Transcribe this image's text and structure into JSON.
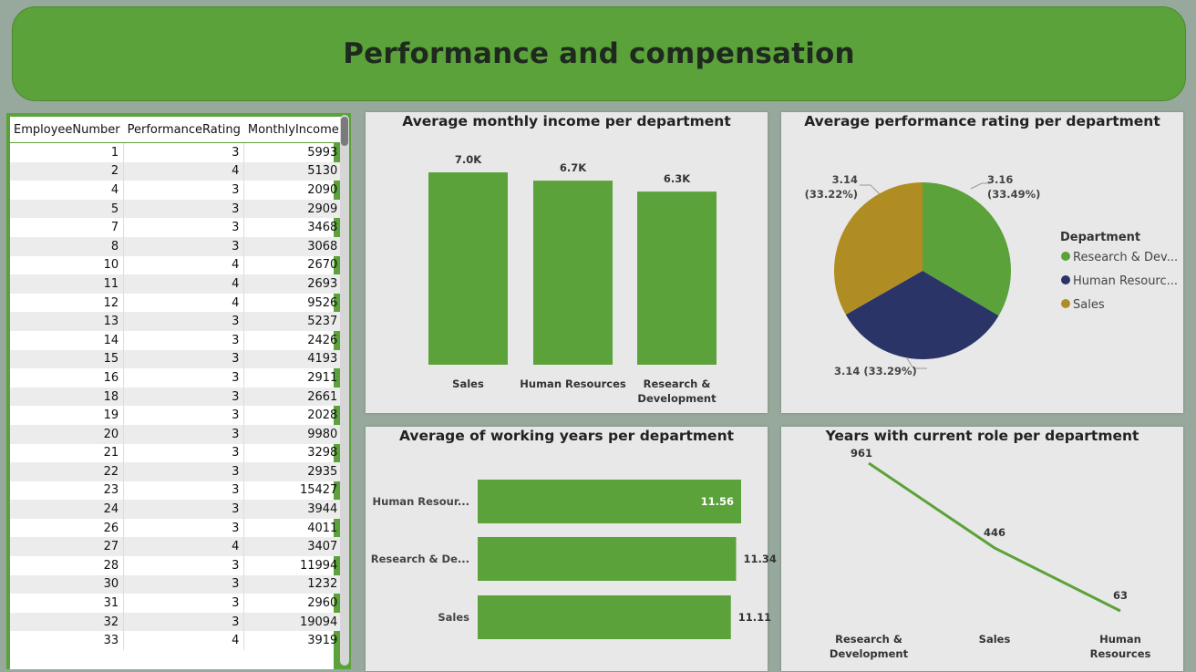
{
  "header": {
    "title": "Performance and compensation"
  },
  "table": {
    "columns": [
      "EmployeeNumber",
      "PerformanceRating",
      "MonthlyIncome"
    ],
    "rows": [
      [
        1,
        3,
        5993
      ],
      [
        2,
        4,
        5130
      ],
      [
        4,
        3,
        2090
      ],
      [
        5,
        3,
        2909
      ],
      [
        7,
        3,
        3468
      ],
      [
        8,
        3,
        3068
      ],
      [
        10,
        4,
        2670
      ],
      [
        11,
        4,
        2693
      ],
      [
        12,
        4,
        9526
      ],
      [
        13,
        3,
        5237
      ],
      [
        14,
        3,
        2426
      ],
      [
        15,
        3,
        4193
      ],
      [
        16,
        3,
        2911
      ],
      [
        18,
        3,
        2661
      ],
      [
        19,
        3,
        2028
      ],
      [
        20,
        3,
        9980
      ],
      [
        21,
        3,
        3298
      ],
      [
        22,
        3,
        2935
      ],
      [
        23,
        3,
        15427
      ],
      [
        24,
        3,
        3944
      ],
      [
        26,
        3,
        4011
      ],
      [
        27,
        4,
        3407
      ],
      [
        28,
        3,
        11994
      ],
      [
        30,
        3,
        1232
      ],
      [
        31,
        3,
        2960
      ],
      [
        32,
        3,
        19094
      ],
      [
        33,
        4,
        3919
      ]
    ]
  },
  "chart_data": [
    {
      "type": "bar",
      "title": "Average monthly income per department",
      "categories": [
        "Sales",
        "Human Resources",
        "Research & Development"
      ],
      "values": [
        7000,
        6700,
        6300
      ],
      "data_labels": [
        "7.0K",
        "6.7K",
        "6.3K"
      ],
      "ylim": [
        0,
        7300
      ],
      "color": "#5ba23a"
    },
    {
      "type": "pie",
      "title": "Average performance rating per department",
      "legend_title": "Department",
      "legend_labels": [
        "Research & Dev...",
        "Human Resourc...",
        "Sales"
      ],
      "categories": [
        "Research & Development",
        "Human Resources",
        "Sales"
      ],
      "values": [
        3.16,
        3.14,
        3.14
      ],
      "data_labels": [
        "3.16\n(33.49%)",
        "3.14 (33.29%)",
        "3.14\n(33.22%)"
      ],
      "colors": [
        "#5ba23a",
        "#2b3467",
        "#b08d22"
      ],
      "legend_position": "right"
    },
    {
      "type": "bar",
      "orientation": "horizontal",
      "title": "Average of working years per department",
      "categories": [
        "Human Resour...",
        "Research & De...",
        "Sales"
      ],
      "values": [
        11.56,
        11.34,
        11.11
      ],
      "data_labels": [
        "11.56",
        "11.34",
        "11.11"
      ],
      "xlim": [
        0,
        12
      ],
      "color": "#5ba23a"
    },
    {
      "type": "line",
      "title": "Years with current role per department",
      "categories": [
        "Research & Development",
        "Sales",
        "Human Resources"
      ],
      "values": [
        961,
        446,
        63
      ],
      "data_labels": [
        "961",
        "446",
        "63"
      ],
      "color": "#5ba23a"
    }
  ]
}
